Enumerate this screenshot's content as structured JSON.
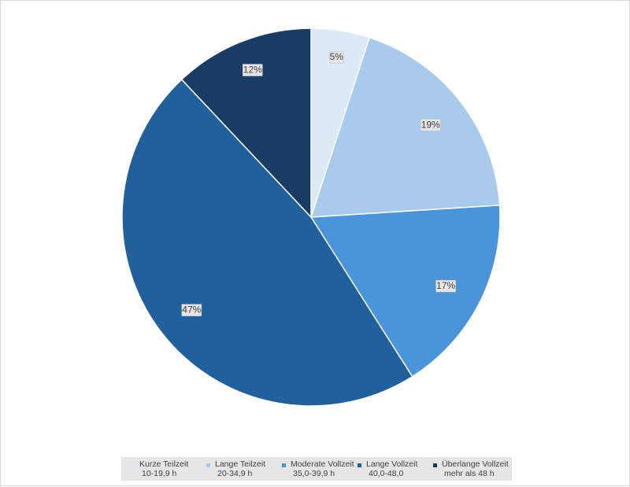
{
  "chart_data": {
    "type": "pie",
    "start_angle_deg": 0,
    "direction": "clockwise",
    "slices": [
      {
        "name": "Kurze Teilzeit",
        "range": "10-19,9 h",
        "value": 5,
        "label": "5%",
        "color": "#dde9f7"
      },
      {
        "name": "Lange Teilzeit",
        "range": "20-34,9 h",
        "value": 19,
        "label": "19%",
        "color": "#a8caec"
      },
      {
        "name": "Moderate Vollzeit",
        "range": "35,0-39,9 h",
        "value": 17,
        "label": "17%",
        "color": "#4a94da"
      },
      {
        "name": "Lange Vollzeit",
        "range": "40,0-48,0",
        "value": 47,
        "label": "47%",
        "color": "#21609d"
      },
      {
        "name": "Überlange Vollzeit",
        "range": "mehr als 48 h",
        "value": 12,
        "label": "12%",
        "color": "#183c64"
      }
    ],
    "legend_position": "bottom"
  }
}
